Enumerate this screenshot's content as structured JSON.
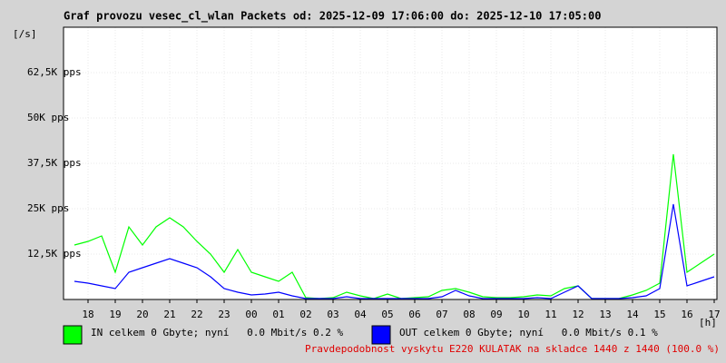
{
  "chart_data": {
    "type": "line",
    "title": "Graf provozu vesec_cl_wlan Packets od: 2025-12-09 17:06:00 do: 2025-12-10 17:05:00",
    "y_label": "[/s]",
    "x_label": "[h]",
    "xlim": [
      17.1,
      41.1
    ],
    "xticks": [
      {
        "value": 18,
        "label": "18"
      },
      {
        "value": 19,
        "label": "19"
      },
      {
        "value": 20,
        "label": "20"
      },
      {
        "value": 21,
        "label": "21"
      },
      {
        "value": 22,
        "label": "22"
      },
      {
        "value": 23,
        "label": "23"
      },
      {
        "value": 24,
        "label": "00"
      },
      {
        "value": 25,
        "label": "01"
      },
      {
        "value": 26,
        "label": "02"
      },
      {
        "value": 27,
        "label": "03"
      },
      {
        "value": 28,
        "label": "04"
      },
      {
        "value": 29,
        "label": "05"
      },
      {
        "value": 30,
        "label": "06"
      },
      {
        "value": 31,
        "label": "07"
      },
      {
        "value": 32,
        "label": "08"
      },
      {
        "value": 33,
        "label": "09"
      },
      {
        "value": 34,
        "label": "10"
      },
      {
        "value": 35,
        "label": "11"
      },
      {
        "value": 36,
        "label": "12"
      },
      {
        "value": 37,
        "label": "13"
      },
      {
        "value": 38,
        "label": "14"
      },
      {
        "value": 39,
        "label": "15"
      },
      {
        "value": 40,
        "label": "16"
      },
      {
        "value": 41,
        "label": "17"
      }
    ],
    "ylim": [
      0,
      75000
    ],
    "yticks": [
      {
        "value": 12500,
        "label": "12,5K pps"
      },
      {
        "value": 25000,
        "label": "25K pps"
      },
      {
        "value": 37500,
        "label": "37,5K pps"
      },
      {
        "value": 50000,
        "label": "50K pps"
      },
      {
        "value": 62500,
        "label": "62,5K pps"
      }
    ],
    "grid": true,
    "x": [
      17.5,
      18,
      18.5,
      19,
      19.5,
      20,
      20.5,
      21,
      21.5,
      22,
      22.5,
      23,
      23.5,
      24,
      24.5,
      25,
      25.5,
      26,
      26.5,
      27,
      27.5,
      28,
      28.5,
      29,
      29.5,
      30,
      30.5,
      31,
      31.5,
      32,
      32.5,
      33,
      33.5,
      34,
      34.5,
      35,
      35.5,
      36,
      36.5,
      37,
      37.5,
      38,
      38.5,
      39,
      39.5,
      40,
      40.5,
      41
    ],
    "series": [
      {
        "name": "IN celkem 0 Gbyte; nyní   0.0 Mbit/s 0.2 %",
        "color": "#00ff00",
        "values": [
          15000,
          16000,
          17500,
          7500,
          20000,
          15000,
          20000,
          22500,
          20000,
          16000,
          12500,
          7500,
          13750,
          7500,
          6250,
          5000,
          7500,
          500,
          250,
          500,
          2000,
          1000,
          250,
          1500,
          250,
          500,
          750,
          2500,
          3000,
          2000,
          750,
          500,
          500,
          750,
          1250,
          1000,
          3000,
          3750,
          250,
          250,
          250,
          1250,
          2500,
          4500,
          40000,
          7500,
          10000,
          12500
        ]
      },
      {
        "name": "OUT celkem 0 Gbyte; nyní   0.0 Mbit/s 0.1 %",
        "color": "#0000ff",
        "values": [
          5000,
          4500,
          3750,
          3000,
          7500,
          8750,
          10000,
          11250,
          10000,
          8750,
          6250,
          3000,
          2000,
          1250,
          1500,
          2000,
          1000,
          250,
          250,
          250,
          750,
          250,
          250,
          250,
          250,
          250,
          250,
          750,
          2500,
          1000,
          250,
          250,
          250,
          250,
          500,
          250,
          2000,
          3750,
          250,
          250,
          250,
          500,
          1000,
          3000,
          26250,
          3750,
          5000,
          6250
        ]
      }
    ],
    "note": "Pravdepodobnost vyskytu E220 KULATAK na skladce 1440 z 1440 (100.0 %)"
  }
}
